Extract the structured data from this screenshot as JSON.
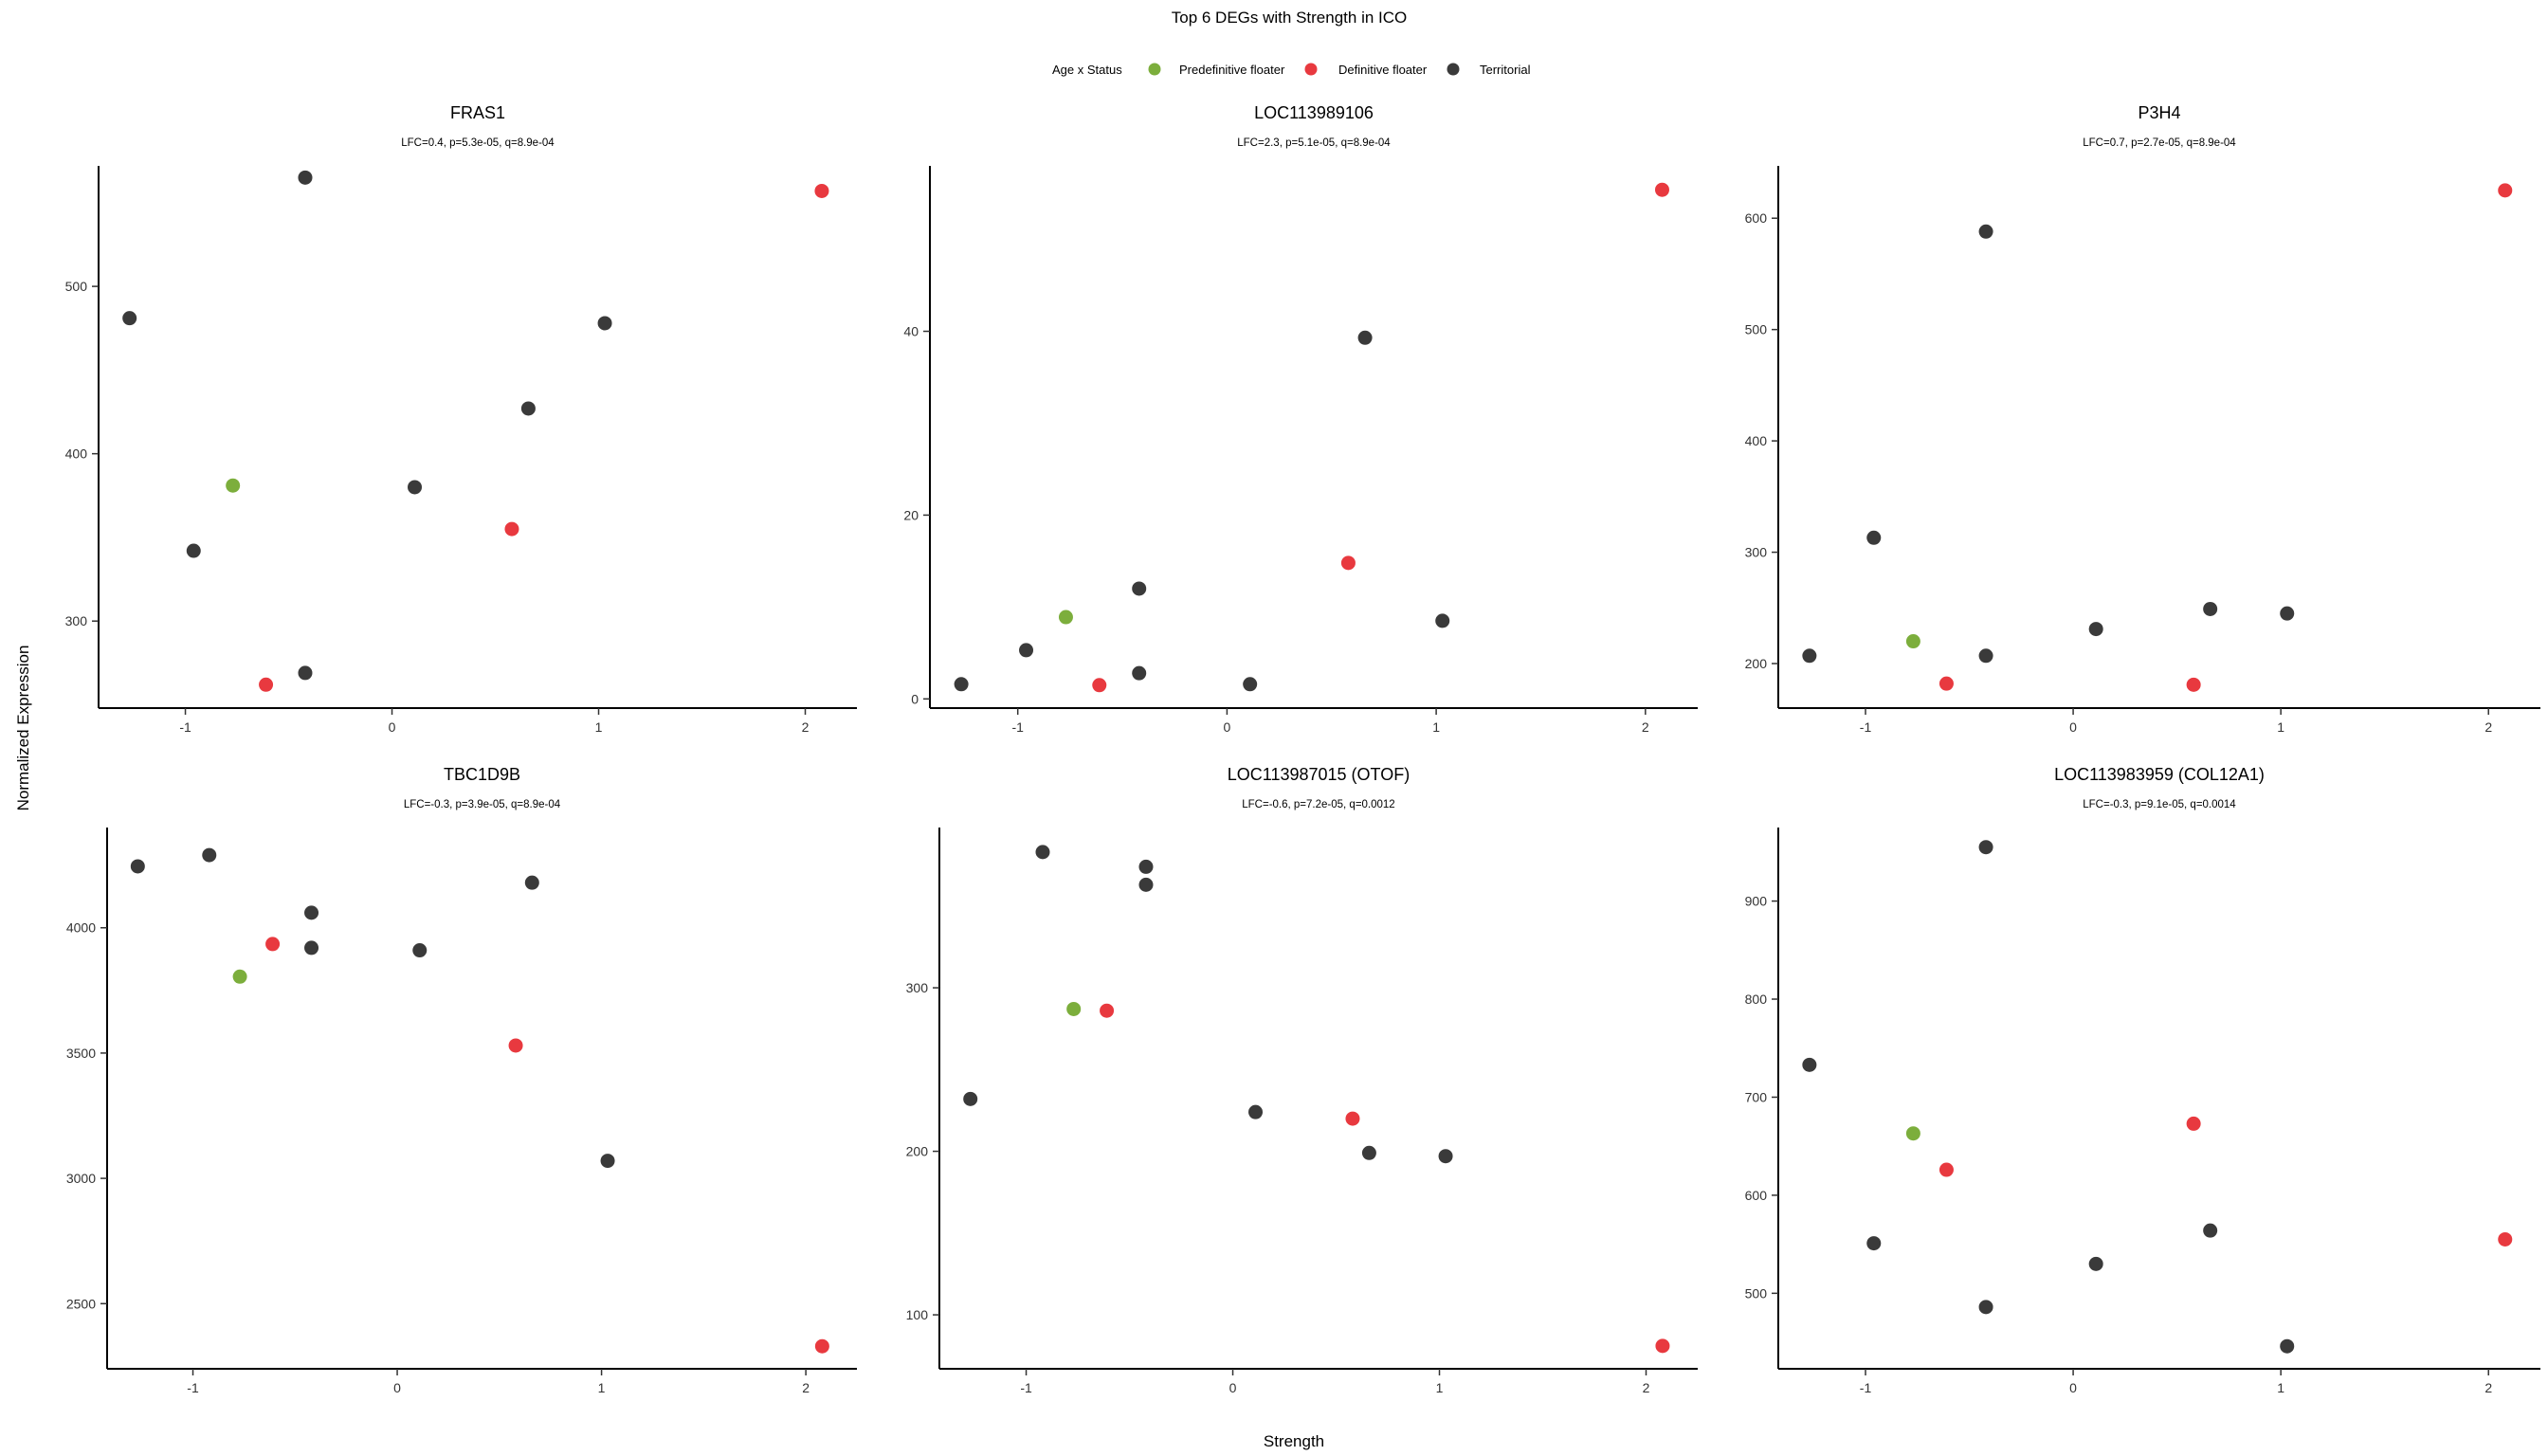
{
  "chart_title": "Top 6 DEGs with Strength in ICO",
  "legend": {
    "title": "Age x Status",
    "entries": [
      {
        "label": "Predefinitive floater",
        "color": "#7cae3c"
      },
      {
        "label": "Definitive floater",
        "color": "#e8393f"
      },
      {
        "label": "Territorial",
        "color": "#3a3a3a"
      }
    ],
    "placement": "top"
  },
  "xlabel": "Strength",
  "ylabel": "Normalized Expression",
  "chart_data": [
    {
      "type": "scatter",
      "title": "FRAS1",
      "subtitle": "LFC=0.4, p=5.3e-05, q=8.9e-04",
      "xlim": [
        -1.42,
        2.25
      ],
      "ylim": [
        248,
        572
      ],
      "xticks": [
        -1,
        0,
        1,
        2
      ],
      "xtick_labels": [
        "-1",
        "0",
        "1",
        "2"
      ],
      "yticks": [
        300,
        400,
        500
      ],
      "ytick_labels": [
        "300",
        "400",
        "500"
      ],
      "points": [
        {
          "x": -1.27,
          "y": 481,
          "group": "Territorial"
        },
        {
          "x": -0.42,
          "y": 565,
          "group": "Territorial"
        },
        {
          "x": -0.96,
          "y": 342,
          "group": "Territorial"
        },
        {
          "x": -0.42,
          "y": 269,
          "group": "Territorial"
        },
        {
          "x": 0.11,
          "y": 380,
          "group": "Territorial"
        },
        {
          "x": 0.66,
          "y": 427,
          "group": "Territorial"
        },
        {
          "x": 1.03,
          "y": 478,
          "group": "Territorial"
        },
        {
          "x": -0.77,
          "y": 381,
          "group": "Predefinitive floater"
        },
        {
          "x": -0.61,
          "y": 262,
          "group": "Definitive floater"
        },
        {
          "x": 0.58,
          "y": 355,
          "group": "Definitive floater"
        },
        {
          "x": 2.08,
          "y": 557,
          "group": "Definitive floater"
        }
      ]
    },
    {
      "type": "scatter",
      "title": "LOC113989106",
      "subtitle": "LFC=2.3, p=5.1e-05, q=8.9e-04",
      "xlim": [
        -1.42,
        2.25
      ],
      "ylim": [
        -1,
        58
      ],
      "xticks": [
        -1,
        0,
        1,
        2
      ],
      "xtick_labels": [
        "-1",
        "0",
        "1",
        "2"
      ],
      "yticks": [
        0,
        20,
        40
      ],
      "ytick_labels": [
        "0",
        "20",
        "40"
      ],
      "points": [
        {
          "x": -1.27,
          "y": 1.6,
          "group": "Territorial"
        },
        {
          "x": -0.96,
          "y": 5.3,
          "group": "Territorial"
        },
        {
          "x": -0.42,
          "y": 12,
          "group": "Territorial"
        },
        {
          "x": -0.42,
          "y": 2.8,
          "group": "Territorial"
        },
        {
          "x": 0.11,
          "y": 1.6,
          "group": "Territorial"
        },
        {
          "x": 0.66,
          "y": 39.3,
          "group": "Territorial"
        },
        {
          "x": 1.03,
          "y": 8.5,
          "group": "Territorial"
        },
        {
          "x": -0.77,
          "y": 8.9,
          "group": "Predefinitive floater"
        },
        {
          "x": -0.61,
          "y": 1.5,
          "group": "Definitive floater"
        },
        {
          "x": 0.58,
          "y": 14.8,
          "group": "Definitive floater"
        },
        {
          "x": 2.08,
          "y": 55.4,
          "group": "Definitive floater"
        }
      ]
    },
    {
      "type": "scatter",
      "title": "P3H4",
      "subtitle": "LFC=0.7, p=2.7e-05, q=8.9e-04",
      "xlim": [
        -1.42,
        2.25
      ],
      "ylim": [
        160,
        647
      ],
      "xticks": [
        -1,
        0,
        1,
        2
      ],
      "xtick_labels": [
        "-1",
        "0",
        "1",
        "2"
      ],
      "yticks": [
        200,
        300,
        400,
        500,
        600
      ],
      "ytick_labels": [
        "200",
        "300",
        "400",
        "500",
        "600"
      ],
      "points": [
        {
          "x": -1.27,
          "y": 207,
          "group": "Territorial"
        },
        {
          "x": -0.96,
          "y": 313,
          "group": "Territorial"
        },
        {
          "x": -0.42,
          "y": 588,
          "group": "Territorial"
        },
        {
          "x": -0.42,
          "y": 207,
          "group": "Territorial"
        },
        {
          "x": 0.11,
          "y": 231,
          "group": "Territorial"
        },
        {
          "x": 0.66,
          "y": 249,
          "group": "Territorial"
        },
        {
          "x": 1.03,
          "y": 245,
          "group": "Territorial"
        },
        {
          "x": -0.77,
          "y": 220,
          "group": "Predefinitive floater"
        },
        {
          "x": -0.61,
          "y": 182,
          "group": "Definitive floater"
        },
        {
          "x": 0.58,
          "y": 181,
          "group": "Definitive floater"
        },
        {
          "x": 2.08,
          "y": 625,
          "group": "Definitive floater"
        }
      ]
    },
    {
      "type": "scatter",
      "title": "TBC1D9B",
      "subtitle": "LFC=-0.3, p=3.9e-05, q=8.9e-04",
      "xlim": [
        -1.42,
        2.25
      ],
      "ylim": [
        2240,
        4400
      ],
      "xticks": [
        -1,
        0,
        1,
        2
      ],
      "xtick_labels": [
        "-1",
        "0",
        "1",
        "2"
      ],
      "yticks": [
        2500,
        3000,
        3500,
        4000
      ],
      "ytick_labels": [
        "2500",
        "3000",
        "3500",
        "4000"
      ],
      "points": [
        {
          "x": -1.27,
          "y": 4245,
          "group": "Territorial"
        },
        {
          "x": -0.92,
          "y": 4290,
          "group": "Territorial"
        },
        {
          "x": -0.42,
          "y": 4060,
          "group": "Territorial"
        },
        {
          "x": -0.42,
          "y": 3920,
          "group": "Territorial"
        },
        {
          "x": 0.11,
          "y": 3910,
          "group": "Territorial"
        },
        {
          "x": 0.66,
          "y": 4180,
          "group": "Territorial"
        },
        {
          "x": 1.03,
          "y": 3070,
          "group": "Territorial"
        },
        {
          "x": -0.77,
          "y": 3805,
          "group": "Predefinitive floater"
        },
        {
          "x": -0.61,
          "y": 3935,
          "group": "Definitive floater"
        },
        {
          "x": 0.58,
          "y": 3530,
          "group": "Definitive floater"
        },
        {
          "x": 2.08,
          "y": 2330,
          "group": "Definitive floater"
        }
      ]
    },
    {
      "type": "scatter",
      "title": "LOC113987015 (OTOF)",
      "subtitle": "LFC=-0.6, p=7.2e-05, q=0.0012",
      "xlim": [
        -1.42,
        2.25
      ],
      "ylim": [
        67,
        398
      ],
      "xticks": [
        -1,
        0,
        1,
        2
      ],
      "xtick_labels": [
        "-1",
        "0",
        "1",
        "2"
      ],
      "yticks": [
        100,
        200,
        300
      ],
      "ytick_labels": [
        "100",
        "200",
        "300"
      ],
      "points": [
        {
          "x": -1.27,
          "y": 232,
          "group": "Territorial"
        },
        {
          "x": -0.92,
          "y": 383,
          "group": "Territorial"
        },
        {
          "x": -0.42,
          "y": 374,
          "group": "Territorial"
        },
        {
          "x": -0.42,
          "y": 363,
          "group": "Territorial"
        },
        {
          "x": 0.11,
          "y": 224,
          "group": "Territorial"
        },
        {
          "x": 0.66,
          "y": 199,
          "group": "Territorial"
        },
        {
          "x": 1.03,
          "y": 197,
          "group": "Territorial"
        },
        {
          "x": -0.77,
          "y": 287,
          "group": "Predefinitive floater"
        },
        {
          "x": -0.61,
          "y": 286,
          "group": "Definitive floater"
        },
        {
          "x": 0.58,
          "y": 220,
          "group": "Definitive floater"
        },
        {
          "x": 2.08,
          "y": 81,
          "group": "Definitive floater"
        }
      ]
    },
    {
      "type": "scatter",
      "title": "LOC113983959 (COL12A1)",
      "subtitle": "LFC=-0.3, p=9.1e-05, q=0.0014",
      "xlim": [
        -1.42,
        2.25
      ],
      "ylim": [
        423,
        975
      ],
      "xticks": [
        -1,
        0,
        1,
        2
      ],
      "xtick_labels": [
        "-1",
        "0",
        "1",
        "2"
      ],
      "yticks": [
        500,
        600,
        700,
        800,
        900
      ],
      "ytick_labels": [
        "500",
        "600",
        "700",
        "800",
        "900"
      ],
      "points": [
        {
          "x": -1.27,
          "y": 733,
          "group": "Territorial"
        },
        {
          "x": -0.96,
          "y": 551,
          "group": "Territorial"
        },
        {
          "x": -0.42,
          "y": 955,
          "group": "Territorial"
        },
        {
          "x": -0.42,
          "y": 486,
          "group": "Territorial"
        },
        {
          "x": 0.11,
          "y": 530,
          "group": "Territorial"
        },
        {
          "x": 0.66,
          "y": 564,
          "group": "Territorial"
        },
        {
          "x": 1.03,
          "y": 446,
          "group": "Territorial"
        },
        {
          "x": -0.77,
          "y": 663,
          "group": "Predefinitive floater"
        },
        {
          "x": -0.61,
          "y": 626,
          "group": "Definitive floater"
        },
        {
          "x": 0.58,
          "y": 673,
          "group": "Definitive floater"
        },
        {
          "x": 2.08,
          "y": 555,
          "group": "Definitive floater"
        }
      ]
    }
  ]
}
